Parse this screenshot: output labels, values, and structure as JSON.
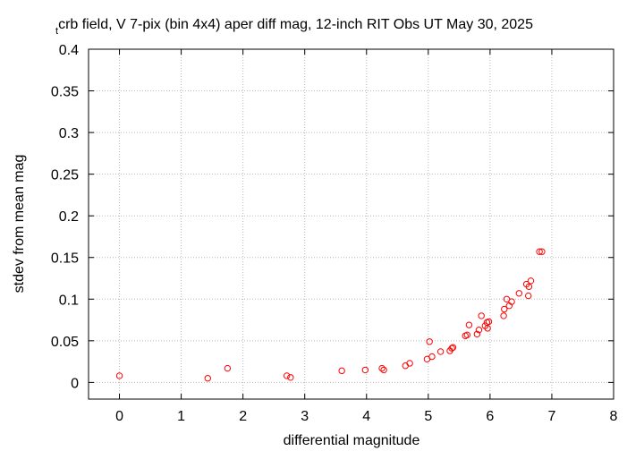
{
  "chart_data": {
    "type": "scatter",
    "title_prefix": "t",
    "title": "crb field, V 7-pix (bin 4x4) aper diff mag,  12-inch RIT Obs UT May 30, 2025",
    "xlabel": "differential magnitude",
    "ylabel": "stdev from mean mag",
    "xlim": [
      -0.5,
      8
    ],
    "ylim": [
      -0.02,
      0.4
    ],
    "xticks": [
      "0",
      "1",
      "2",
      "3",
      "4",
      "5",
      "6",
      "7",
      "8"
    ],
    "yticks": [
      "0",
      "0.05",
      "0.1",
      "0.15",
      "0.2",
      "0.25",
      "0.3",
      "0.35",
      "0.4"
    ],
    "grid": true,
    "marker_color": "#ff0000",
    "series": [
      {
        "points": [
          [
            0.0,
            0.008
          ],
          [
            1.43,
            0.005
          ],
          [
            1.75,
            0.017
          ],
          [
            2.71,
            0.008
          ],
          [
            2.77,
            0.006
          ],
          [
            3.6,
            0.014
          ],
          [
            3.98,
            0.015
          ],
          [
            4.25,
            0.017
          ],
          [
            4.28,
            0.015
          ],
          [
            4.63,
            0.02
          ],
          [
            4.7,
            0.023
          ],
          [
            4.98,
            0.028
          ],
          [
            5.02,
            0.049
          ],
          [
            5.06,
            0.031
          ],
          [
            5.2,
            0.037
          ],
          [
            5.35,
            0.038
          ],
          [
            5.38,
            0.041
          ],
          [
            5.4,
            0.042
          ],
          [
            5.6,
            0.056
          ],
          [
            5.63,
            0.057
          ],
          [
            5.66,
            0.069
          ],
          [
            5.79,
            0.058
          ],
          [
            5.82,
            0.063
          ],
          [
            5.86,
            0.08
          ],
          [
            5.92,
            0.068
          ],
          [
            5.95,
            0.072
          ],
          [
            5.96,
            0.065
          ],
          [
            5.98,
            0.073
          ],
          [
            6.22,
            0.08
          ],
          [
            6.23,
            0.088
          ],
          [
            6.27,
            0.1
          ],
          [
            6.31,
            0.092
          ],
          [
            6.35,
            0.097
          ],
          [
            6.47,
            0.107
          ],
          [
            6.59,
            0.118
          ],
          [
            6.62,
            0.104
          ],
          [
            6.63,
            0.115
          ],
          [
            6.66,
            0.122
          ],
          [
            6.8,
            0.157
          ],
          [
            6.84,
            0.157
          ]
        ]
      }
    ]
  }
}
